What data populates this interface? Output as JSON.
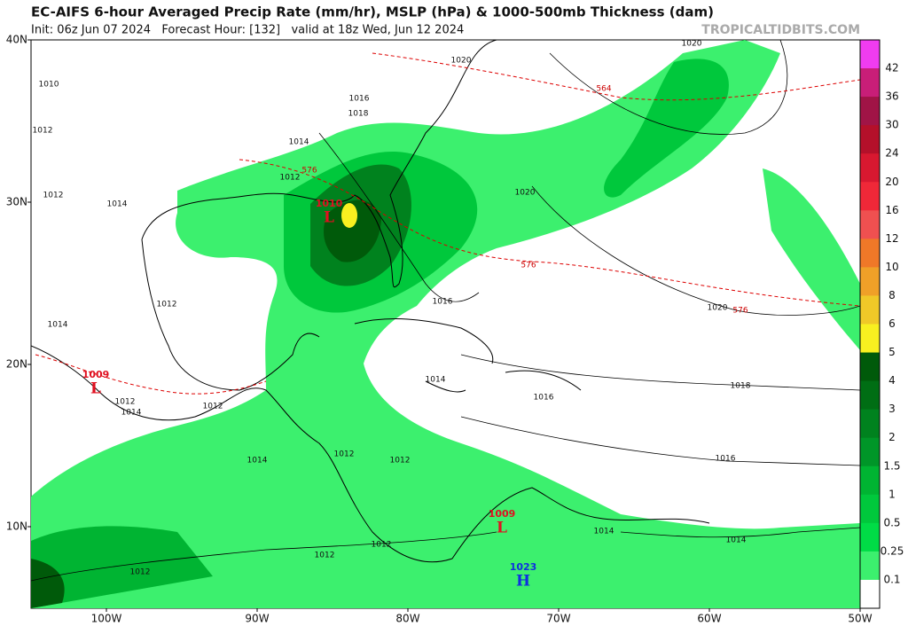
{
  "header": {
    "title": "EC-AIFS 6-hour Averaged Precip Rate (mm/hr), MSLP (hPa) & 1000-500mb Thickness (dam)",
    "subtitle": "Init: 06z Jun 07 2024   Forecast Hour: [132]   valid at 18z Wed, Jun 12 2024",
    "brand": "TROPICALTIDBITS.COM"
  },
  "lat_labels": [
    "40N",
    "30N",
    "20N",
    "10N"
  ],
  "lon_labels": [
    "100W",
    "90W",
    "80W",
    "70W",
    "60W",
    "50W"
  ],
  "colorbar": {
    "labels": [
      "42",
      "36",
      "30",
      "24",
      "20",
      "16",
      "12",
      "10",
      "8",
      "6",
      "5",
      "4",
      "3",
      "2",
      "1.5",
      "1",
      "0.5",
      "0.25",
      "0.1"
    ],
    "colors": [
      "#f03cf0",
      "#c81e78",
      "#a01446",
      "#b4102a",
      "#d81830",
      "#f02838",
      "#f05050",
      "#f07828",
      "#f0a028",
      "#f0c828",
      "#f8f020",
      "#005a0a",
      "#006e14",
      "#00821e",
      "#009628",
      "#00b432",
      "#00c83c",
      "#00dc46",
      "#3cf06e",
      "#ffffff"
    ]
  },
  "isobar_labels": [
    "1010",
    "1012",
    "1012",
    "1014",
    "1012",
    "1014",
    "1016",
    "1018",
    "1014",
    "1012",
    "1020",
    "1020",
    "1020",
    "1016",
    "1020",
    "1018",
    "1016",
    "1014",
    "1016",
    "1014",
    "1014",
    "1012",
    "1012",
    "1014",
    "1012",
    "1014",
    "1012",
    "1012",
    "1012",
    "1012"
  ],
  "thickness_labels": [
    "564",
    "576",
    "576",
    "576"
  ],
  "pressure_centers": [
    {
      "value": "1010",
      "letter": "L"
    },
    {
      "value": "1009",
      "letter": "L"
    },
    {
      "value": "1009",
      "letter": "L"
    },
    {
      "value": "1023",
      "letter": "H"
    }
  ]
}
